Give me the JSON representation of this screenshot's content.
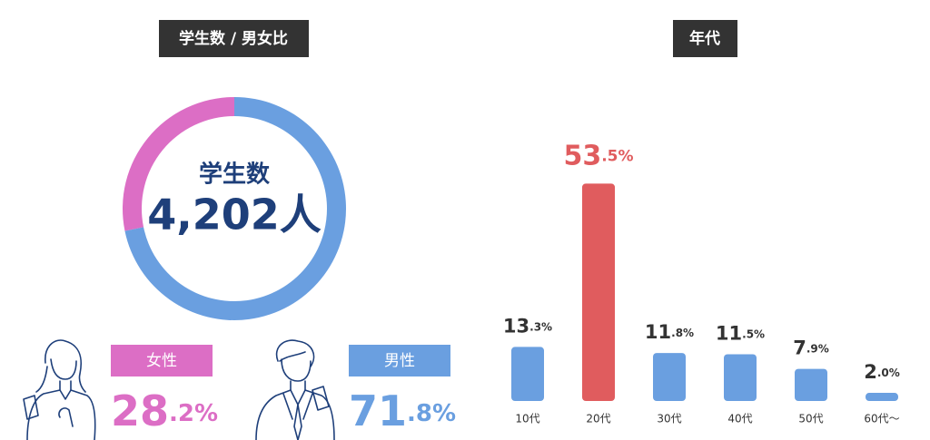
{
  "chart_data": [
    {
      "type": "pie",
      "title": "学生数 / 男女比",
      "center_title": "学生数",
      "center_value": "4,202人",
      "categories": [
        "女性",
        "男性"
      ],
      "values": [
        28.2,
        71.8
      ],
      "value_labels": [
        "28.2%",
        "71.8%"
      ],
      "colors": [
        "#dc6ec5",
        "#6a9fe0"
      ]
    },
    {
      "type": "bar",
      "title": "年代",
      "categories": [
        "10代",
        "20代",
        "30代",
        "40代",
        "50代",
        "60代〜"
      ],
      "values": [
        13.3,
        53.5,
        11.8,
        11.5,
        7.9,
        2.0
      ],
      "value_labels": [
        "13.3%",
        "53.5%",
        "11.8%",
        "11.5%",
        "7.9%",
        "2.0%"
      ],
      "colors": [
        "#6a9fe0",
        "#e05c5e",
        "#6a9fe0",
        "#6a9fe0",
        "#6a9fe0",
        "#6a9fe0"
      ],
      "label_colors": [
        "#333333",
        "#e05c5e",
        "#333333",
        "#333333",
        "#333333",
        "#333333"
      ]
    }
  ]
}
